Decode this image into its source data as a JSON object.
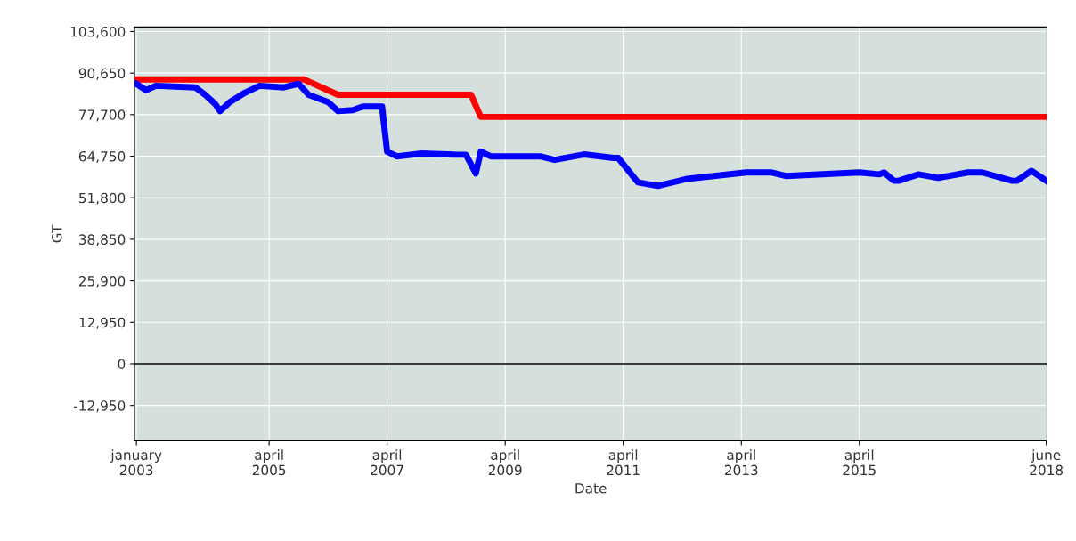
{
  "chart_data": {
    "type": "line",
    "xlabel": "Date",
    "ylabel": "GT",
    "xlim": [
      "2002-12-20",
      "2018-06-05"
    ],
    "xticks": [
      {
        "value": "2003-01",
        "label": "january\n2003"
      },
      {
        "value": "2005-04",
        "label": "april\n2005"
      },
      {
        "value": "2007-04",
        "label": "april\n2007"
      },
      {
        "value": "2009-04",
        "label": "april\n2009"
      },
      {
        "value": "2011-04",
        "label": "april\n2011"
      },
      {
        "value": "2013-04",
        "label": "april\n2013"
      },
      {
        "value": "2015-04",
        "label": "april\n2015"
      },
      {
        "value": "2018-06",
        "label": "june\n2018"
      }
    ],
    "ylim": [
      -24000,
      105000
    ],
    "yticks": [
      {
        "value": -12950,
        "label": "-12,950"
      },
      0,
      {
        "value": 12950,
        "label": "12,950"
      },
      {
        "value": 25900,
        "label": "25,900"
      },
      {
        "value": 38850,
        "label": "38,850"
      },
      {
        "value": 51800,
        "label": "51,800"
      },
      {
        "value": 64750,
        "label": "64,750"
      },
      {
        "value": 77700,
        "label": "77,700"
      },
      {
        "value": 90650,
        "label": "90,650"
      },
      {
        "value": 103600,
        "label": "103,600"
      }
    ],
    "grid": true,
    "legend": false,
    "marker": "none",
    "line_style": "solid",
    "ref_lines": [
      {
        "axis": "y",
        "value": 0,
        "color": "#000000"
      }
    ],
    "series": [
      {
        "color": "#ff0000",
        "x": [
          "2003-01",
          "2005-11",
          "2006-06",
          "2008-09",
          "2008-11",
          "2018-06"
        ],
        "values": [
          88700,
          88700,
          83900,
          83900,
          77000,
          77000
        ]
      },
      {
        "color": "#0000ff",
        "x": [
          "2003-01",
          "2003-03",
          "2003-05",
          "2004-01",
          "2004-03",
          "2004-05",
          "2004-06",
          "2004-08",
          "2004-11",
          "2005-02",
          "2005-07",
          "2005-10",
          "2005-12",
          "2006-04",
          "2006-06",
          "2006-09",
          "2006-11",
          "2007-03",
          "2007-04",
          "2007-06",
          "2007-11",
          "2008-06",
          "2008-08",
          "2008-10",
          "2008-11",
          "2009-01",
          "2009-08",
          "2009-11",
          "2010-02",
          "2010-08",
          "2011-02",
          "2011-03",
          "2011-07",
          "2011-11",
          "2012-05",
          "2013-05",
          "2013-10",
          "2014-01",
          "2015-04",
          "2015-08",
          "2015-09",
          "2015-11",
          "2015-12",
          "2016-04",
          "2016-08",
          "2017-02",
          "2017-05",
          "2017-11",
          "2017-12",
          "2018-03",
          "2018-06"
        ],
        "values": [
          87300,
          85300,
          86700,
          86200,
          83900,
          81100,
          78800,
          81600,
          84500,
          86700,
          86200,
          87300,
          83900,
          81600,
          78800,
          79100,
          80200,
          80200,
          66200,
          64700,
          65600,
          65200,
          65200,
          59400,
          66200,
          64700,
          64700,
          64700,
          63600,
          65300,
          64200,
          64200,
          56600,
          55500,
          57700,
          59700,
          59700,
          58600,
          59700,
          59100,
          59700,
          57100,
          57100,
          59100,
          58000,
          59700,
          59700,
          57100,
          57100,
          60200,
          57100
        ]
      }
    ]
  }
}
